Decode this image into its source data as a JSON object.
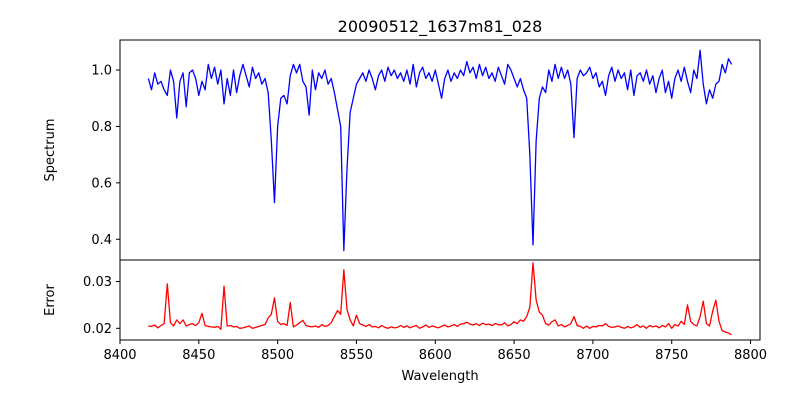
{
  "chart_data": [
    {
      "type": "line",
      "title": "20090512_1637m81_028",
      "xlabel": "",
      "ylabel": "Spectrum",
      "xlim": [
        8400,
        8806
      ],
      "ylim": [
        0.3265,
        1.1065
      ],
      "xticks": [],
      "yticks": [
        0.4,
        0.6,
        0.8,
        1.0
      ],
      "ytick_labels": [
        "0.4",
        "0.6",
        "0.8",
        "1.0"
      ],
      "grid": false,
      "color": "#0000ff",
      "series": [
        {
          "name": "Spectrum",
          "x_start": 8418,
          "x_step": 2,
          "values": [
            0.97,
            0.93,
            0.99,
            0.95,
            0.96,
            0.93,
            0.91,
            1.0,
            0.96,
            0.83,
            0.96,
            0.99,
            0.87,
            0.99,
            1.0,
            0.97,
            0.91,
            0.96,
            0.93,
            1.02,
            0.97,
            1.01,
            0.95,
            1.0,
            0.88,
            0.97,
            0.91,
            1.0,
            0.92,
            0.98,
            1.02,
            0.98,
            0.94,
            1.01,
            0.97,
            0.99,
            0.95,
            0.97,
            0.92,
            0.75,
            0.53,
            0.8,
            0.9,
            0.91,
            0.88,
            0.98,
            1.02,
            0.99,
            1.02,
            0.96,
            0.94,
            0.84,
            1.0,
            0.93,
            0.99,
            0.97,
            1.0,
            0.95,
            0.97,
            0.92,
            0.86,
            0.8,
            0.36,
            0.65,
            0.85,
            0.9,
            0.95,
            0.97,
            0.99,
            0.96,
            1.0,
            0.97,
            0.93,
            0.98,
            1.0,
            0.96,
            1.01,
            0.98,
            1.0,
            0.97,
            0.99,
            0.96,
            1.0,
            0.95,
            1.02,
            0.94,
            0.99,
            1.01,
            0.97,
            0.99,
            0.96,
            1.0,
            0.95,
            0.9,
            0.97,
            1.0,
            0.96,
            0.99,
            0.97,
            1.0,
            0.98,
            1.03,
            0.99,
            1.01,
            0.97,
            1.02,
            0.98,
            1.01,
            0.97,
            0.99,
            0.96,
            1.01,
            0.98,
            0.95,
            1.02,
            1.0,
            0.97,
            0.94,
            0.97,
            0.93,
            0.9,
            0.7,
            0.38,
            0.75,
            0.9,
            0.94,
            0.92,
            1.0,
            0.96,
            1.02,
            0.97,
            1.01,
            0.97,
            1.0,
            0.95,
            0.76,
            0.97,
            1.0,
            0.98,
            0.99,
            1.01,
            0.97,
            0.99,
            0.94,
            0.96,
            0.91,
            0.98,
            1.01,
            0.96,
            1.0,
            0.97,
            0.99,
            0.93,
            1.0,
            0.91,
            0.98,
            0.99,
            0.96,
            1.0,
            0.95,
            0.98,
            0.92,
            0.97,
            1.0,
            0.92,
            0.96,
            0.9,
            0.97,
            1.0,
            0.96,
            1.01,
            0.96,
            0.92,
            1.0,
            0.97,
            1.07,
            0.95,
            0.88,
            0.93,
            0.9,
            0.95,
            0.96,
            1.02,
            0.99,
            1.04,
            1.02
          ]
        }
      ]
    },
    {
      "type": "line",
      "title": "",
      "xlabel": "Wavelength",
      "ylabel": "Error",
      "xlim": [
        8400,
        8806
      ],
      "ylim": [
        0.0175,
        0.0346
      ],
      "xticks": [
        8400,
        8450,
        8500,
        8550,
        8600,
        8650,
        8700,
        8750,
        8800
      ],
      "xtick_labels": [
        "8400",
        "8450",
        "8500",
        "8550",
        "8600",
        "8650",
        "8700",
        "8750",
        "8800"
      ],
      "yticks": [
        0.02,
        0.03
      ],
      "ytick_labels": [
        "0.02",
        "0.03"
      ],
      "grid": false,
      "color": "#ff0000",
      "series": [
        {
          "name": "Error",
          "x_start": 8418,
          "x_step": 2,
          "values": [
            0.0205,
            0.0204,
            0.0207,
            0.0201,
            0.0206,
            0.021,
            0.0295,
            0.0212,
            0.0205,
            0.0218,
            0.021,
            0.0218,
            0.0205,
            0.0208,
            0.021,
            0.0206,
            0.0212,
            0.0232,
            0.0206,
            0.0204,
            0.0203,
            0.0202,
            0.0204,
            0.0198,
            0.029,
            0.0205,
            0.0206,
            0.0203,
            0.0204,
            0.02,
            0.0201,
            0.0203,
            0.0205,
            0.02,
            0.0202,
            0.0204,
            0.0206,
            0.0208,
            0.0222,
            0.023,
            0.0265,
            0.0215,
            0.0208,
            0.021,
            0.0206,
            0.0255,
            0.0203,
            0.0207,
            0.0212,
            0.0217,
            0.0206,
            0.0204,
            0.0203,
            0.0205,
            0.0202,
            0.0208,
            0.0204,
            0.0206,
            0.0212,
            0.0225,
            0.0238,
            0.023,
            0.0325,
            0.024,
            0.0218,
            0.0205,
            0.0228,
            0.021,
            0.0207,
            0.0204,
            0.0208,
            0.0203,
            0.0204,
            0.0201,
            0.0206,
            0.0202,
            0.02,
            0.0203,
            0.0201,
            0.0202,
            0.0206,
            0.0202,
            0.0205,
            0.0201,
            0.0204,
            0.0206,
            0.02,
            0.0203,
            0.0207,
            0.0202,
            0.0205,
            0.0203,
            0.0201,
            0.0204,
            0.0207,
            0.0203,
            0.0205,
            0.0208,
            0.0204,
            0.0209,
            0.021,
            0.0213,
            0.0209,
            0.0207,
            0.021,
            0.0206,
            0.0211,
            0.0208,
            0.0209,
            0.0206,
            0.021,
            0.0208,
            0.0207,
            0.0212,
            0.0205,
            0.0208,
            0.0214,
            0.021,
            0.0218,
            0.0215,
            0.0225,
            0.0245,
            0.034,
            0.026,
            0.0235,
            0.0228,
            0.021,
            0.0207,
            0.0214,
            0.0218,
            0.0205,
            0.0208,
            0.0203,
            0.0206,
            0.021,
            0.0225,
            0.0206,
            0.0204,
            0.02,
            0.0205,
            0.02,
            0.0204,
            0.0203,
            0.0206,
            0.0205,
            0.021,
            0.0204,
            0.0202,
            0.0203,
            0.0205,
            0.0202,
            0.02,
            0.0204,
            0.0201,
            0.0203,
            0.0208,
            0.0202,
            0.0205,
            0.02,
            0.0206,
            0.0203,
            0.0205,
            0.0201,
            0.0206,
            0.0203,
            0.021,
            0.02,
            0.0208,
            0.0205,
            0.0215,
            0.0208,
            0.025,
            0.0215,
            0.0208,
            0.0205,
            0.0225,
            0.0258,
            0.021,
            0.0205,
            0.0237,
            0.026,
            0.0215,
            0.0195,
            0.0192,
            0.019,
            0.0186
          ]
        }
      ]
    }
  ]
}
